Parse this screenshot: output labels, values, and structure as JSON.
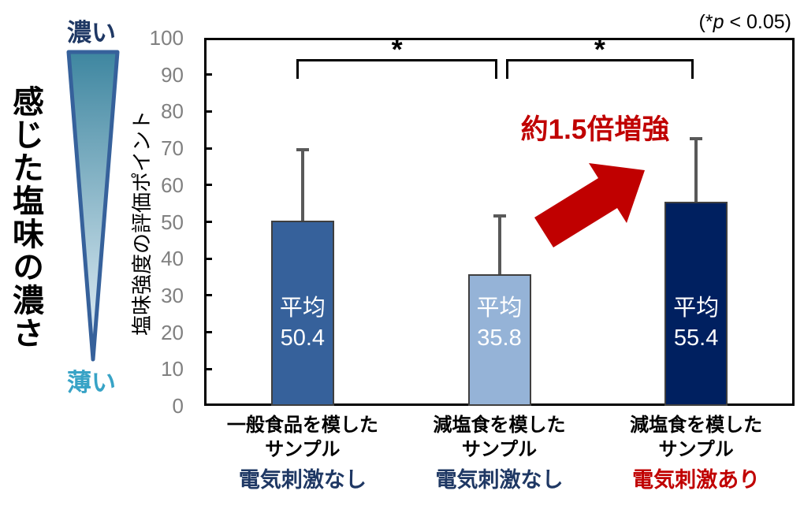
{
  "p_note": {
    "open": "(*",
    "var": "p",
    "rest": " < 0.05)"
  },
  "left_panel": {
    "title": "感じた塩味の濃さ",
    "scale_top": "濃い",
    "scale_bottom": "薄い",
    "scale_top_color": "#1F3864",
    "scale_bottom_color": "#38A3C6",
    "triangle_border_color": "#36619B",
    "triangle_top_color": "#3E86A0",
    "triangle_bottom_color": "#EAF3FA"
  },
  "chart_data": {
    "type": "bar",
    "title": "",
    "xlabel": "",
    "ylabel": "塩味強度の評価ポイント",
    "ylim": [
      0,
      100
    ],
    "yticks": [
      0,
      10,
      20,
      30,
      40,
      50,
      60,
      70,
      80,
      90,
      100
    ],
    "grid": false,
    "legend": false,
    "categories": [
      {
        "lines": [
          "一般食品を模した",
          "サンプル"
        ],
        "condition": "電気刺激なし",
        "condition_color": "#1F3864"
      },
      {
        "lines": [
          "減塩食を模した",
          "サンプル"
        ],
        "condition": "電気刺激なし",
        "condition_color": "#1F3864"
      },
      {
        "lines": [
          "減塩食を模した",
          "サンプル"
        ],
        "condition": "電気刺激あり",
        "condition_color": "#C00000"
      }
    ],
    "values": [
      50.4,
      35.8,
      55.4
    ],
    "bar_value_labels": [
      {
        "prefix": "平均",
        "value": "50.4"
      },
      {
        "prefix": "平均",
        "value": "35.8"
      },
      {
        "prefix": "平均",
        "value": "55.4"
      }
    ],
    "error_upper": [
      69.5,
      51.7,
      72.5
    ],
    "bar_colors": [
      "#36619B",
      "#95B3D7",
      "#002060"
    ],
    "bar_border_color": "#3F3F3F",
    "error_color": "#595959",
    "significance_brackets": [
      {
        "from": 0,
        "to": 1,
        "label": "*"
      },
      {
        "from": 1,
        "to": 2,
        "label": "*"
      }
    ],
    "annotation": {
      "text": "約1.5倍増強",
      "color": "#C00000"
    }
  }
}
